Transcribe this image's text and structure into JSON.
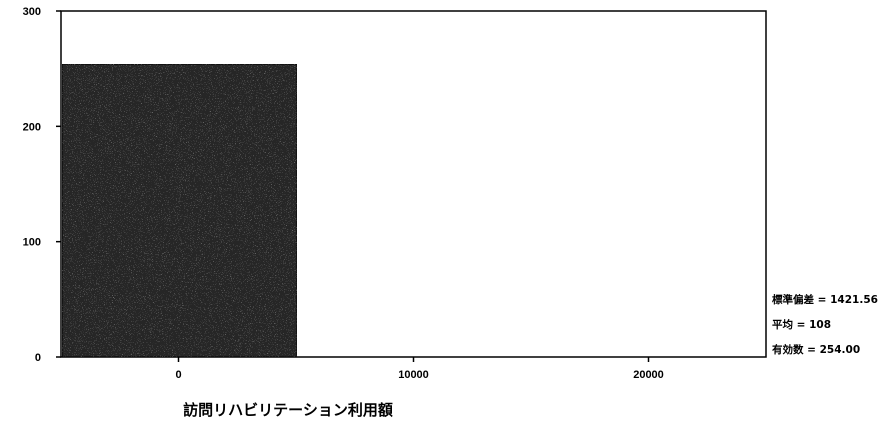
{
  "chart_data": {
    "type": "bar",
    "title": "",
    "xlabel": "訪問リハビリテーション利用額",
    "ylabel": "",
    "xlim": [
      -5000,
      25000
    ],
    "ylim": [
      0,
      300
    ],
    "x_ticks": [
      {
        "value": 0,
        "label": "0"
      },
      {
        "value": 10000,
        "label": "10000"
      },
      {
        "value": 20000,
        "label": "20000"
      }
    ],
    "y_ticks": [
      {
        "value": 0,
        "label": "0"
      },
      {
        "value": 100,
        "label": "100"
      },
      {
        "value": 200,
        "label": "200"
      },
      {
        "value": 300,
        "label": "300"
      }
    ],
    "bins": [
      {
        "x_start": -5000,
        "x_end": 5000,
        "count": 254
      }
    ],
    "grid": false,
    "legend": "none",
    "bar_color": "#262626",
    "stats": [
      {
        "label": "標準偏差 = 1421.56"
      },
      {
        "label": "平均 = 108"
      },
      {
        "label": "有効数 = 254.00"
      }
    ]
  }
}
